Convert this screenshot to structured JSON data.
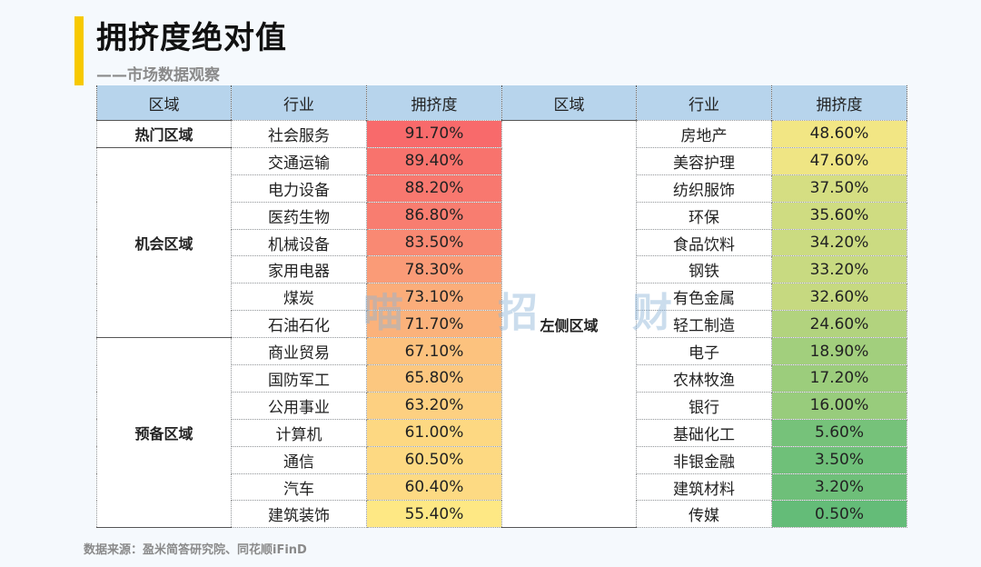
{
  "title": "拥挤度绝对值",
  "subtitle": "——市场数据观察",
  "source": "数据来源：盈米简答研究院、同花顺iFinD",
  "watermark": [
    "喵",
    "招",
    "财"
  ],
  "headers": [
    "区域",
    "行业",
    "拥挤度",
    "区域",
    "行业",
    "拥挤度"
  ],
  "zones": {
    "hot": "热门区域",
    "opportunity": "机会区域",
    "reserve": "预备区域",
    "left": "左侧区域"
  },
  "left_rows": [
    {
      "industry": "社会服务",
      "value": "91.70%",
      "color": "#f86a6b"
    },
    {
      "industry": "交通运输",
      "value": "89.40%",
      "color": "#f8736d"
    },
    {
      "industry": "电力设备",
      "value": "88.20%",
      "color": "#f8786f"
    },
    {
      "industry": "医药生物",
      "value": "86.80%",
      "color": "#f87d70"
    },
    {
      "industry": "机械设备",
      "value": "83.50%",
      "color": "#f98973"
    },
    {
      "industry": "家用电器",
      "value": "78.30%",
      "color": "#fa9b77"
    },
    {
      "industry": "煤炭",
      "value": "73.10%",
      "color": "#fbad7a"
    },
    {
      "industry": "石油石化",
      "value": "71.70%",
      "color": "#fbb27b"
    },
    {
      "industry": "商业贸易",
      "value": "67.10%",
      "color": "#fcc27e"
    },
    {
      "industry": "国防军工",
      "value": "65.80%",
      "color": "#fcc77f"
    },
    {
      "industry": "公用事业",
      "value": "63.20%",
      "color": "#fdd081"
    },
    {
      "industry": "计算机",
      "value": "61.00%",
      "color": "#fdd882"
    },
    {
      "industry": "通信",
      "value": "60.50%",
      "color": "#fdd982"
    },
    {
      "industry": "汽车",
      "value": "60.40%",
      "color": "#fdda83"
    },
    {
      "industry": "建筑装饰",
      "value": "55.40%",
      "color": "#fee884"
    }
  ],
  "right_rows": [
    {
      "industry": "房地产",
      "value": "48.60%",
      "color": "#f2e684"
    },
    {
      "industry": "美容护理",
      "value": "47.60%",
      "color": "#efe584"
    },
    {
      "industry": "纺织服饰",
      "value": "37.50%",
      "color": "#d5de82"
    },
    {
      "industry": "环保",
      "value": "35.60%",
      "color": "#cfdc81"
    },
    {
      "industry": "食品饮料",
      "value": "34.20%",
      "color": "#cbdb81"
    },
    {
      "industry": "钢铁",
      "value": "33.20%",
      "color": "#c8da81"
    },
    {
      "industry": "有色金属",
      "value": "32.60%",
      "color": "#c6d980"
    },
    {
      "industry": "轻工制造",
      "value": "24.60%",
      "color": "#b2d37e"
    },
    {
      "industry": "电子",
      "value": "18.90%",
      "color": "#a2cf7d"
    },
    {
      "industry": "农林牧渔",
      "value": "17.20%",
      "color": "#9ccd7c"
    },
    {
      "industry": "银行",
      "value": "16.00%",
      "color": "#98cc7c"
    },
    {
      "industry": "基础化工",
      "value": "5.60%",
      "color": "#76c27a"
    },
    {
      "industry": "非银金融",
      "value": "3.50%",
      "color": "#6fc079"
    },
    {
      "industry": "建筑材料",
      "value": "3.20%",
      "color": "#6ebf79"
    },
    {
      "industry": "传媒",
      "value": "0.50%",
      "color": "#64bc78"
    }
  ]
}
